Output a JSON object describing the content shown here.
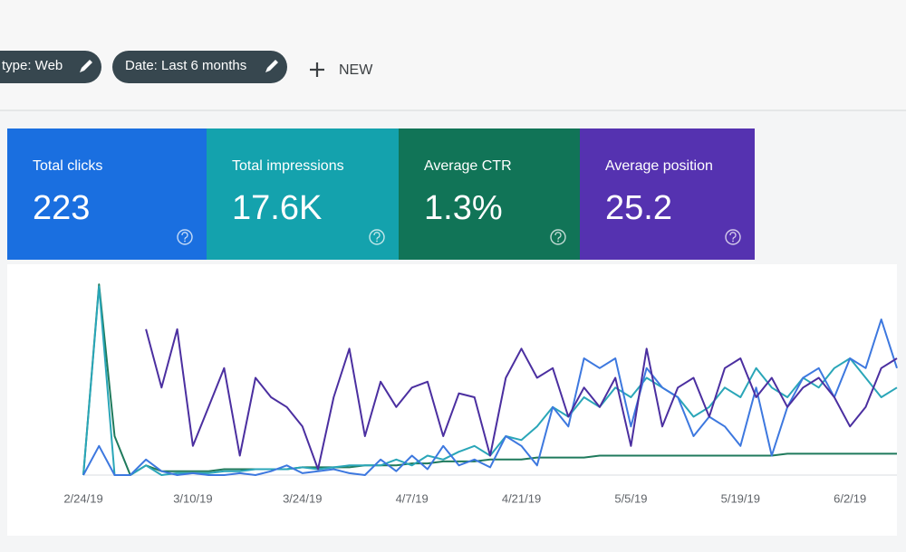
{
  "filters": [
    {
      "label": "type: Web"
    },
    {
      "label": "Date: Last 6 months"
    }
  ],
  "new_button": "NEW",
  "cards": [
    {
      "label": "Total clicks",
      "value": "223",
      "color": "#1a6fe0"
    },
    {
      "label": "Total impressions",
      "value": "17.6K",
      "color": "#14a2ad"
    },
    {
      "label": "Average CTR",
      "value": "1.3%",
      "color": "#117457"
    },
    {
      "label": "Average position",
      "value": "25.2",
      "color": "#5532b0"
    }
  ],
  "chart_data": {
    "type": "line",
    "xlim": [
      0,
      52
    ],
    "ylim": [
      0,
      100
    ],
    "xticks": [
      {
        "value": 0,
        "label": "2/24/19"
      },
      {
        "value": 7,
        "label": "3/10/19"
      },
      {
        "value": 14,
        "label": "3/24/19"
      },
      {
        "value": 21,
        "label": "4/7/19"
      },
      {
        "value": 28,
        "label": "4/21/19"
      },
      {
        "value": 35,
        "label": "5/5/19"
      },
      {
        "value": 42,
        "label": "5/19/19"
      },
      {
        "value": 49,
        "label": "6/2/19"
      }
    ],
    "series": [
      {
        "color": "#1f7a5c",
        "values": [
          0,
          98,
          20,
          0,
          5,
          2,
          2,
          2,
          2,
          3,
          3,
          3,
          3,
          3,
          4,
          4,
          4,
          4,
          5,
          5,
          5,
          6,
          6,
          7,
          7,
          7,
          8,
          8,
          8,
          9,
          9,
          9,
          9,
          10,
          10,
          10,
          10,
          10,
          10,
          10,
          10,
          10,
          10,
          10,
          10,
          11,
          11,
          11,
          11,
          11,
          11,
          11,
          11
        ]
      },
      {
        "color": "#2aa6b8",
        "values": [
          0,
          97,
          0,
          0,
          5,
          0,
          1,
          1,
          1,
          2,
          2,
          3,
          3,
          3,
          4,
          3,
          4,
          5,
          5,
          5,
          8,
          5,
          10,
          8,
          12,
          15,
          10,
          20,
          18,
          25,
          35,
          30,
          40,
          35,
          45,
          40,
          50,
          45,
          40,
          30,
          35,
          45,
          40,
          55,
          45,
          40,
          50,
          45,
          55,
          60,
          50,
          40,
          45
        ]
      },
      {
        "color": "#3d78df",
        "values": [
          0,
          15,
          0,
          0,
          8,
          2,
          0,
          1,
          0,
          0,
          1,
          0,
          2,
          5,
          1,
          2,
          3,
          1,
          0,
          8,
          2,
          10,
          3,
          15,
          5,
          8,
          4,
          20,
          15,
          5,
          35,
          25,
          60,
          55,
          60,
          25,
          55,
          45,
          40,
          20,
          30,
          25,
          15,
          45,
          10,
          35,
          50,
          55,
          40,
          60,
          55,
          80,
          55
        ]
      },
      {
        "color": "#4b2fa0",
        "values": [
          null,
          null,
          null,
          null,
          75,
          45,
          75,
          15,
          35,
          55,
          10,
          50,
          40,
          35,
          25,
          3,
          40,
          65,
          20,
          48,
          35,
          45,
          48,
          20,
          42,
          40,
          10,
          50,
          65,
          50,
          55,
          30,
          45,
          35,
          50,
          15,
          65,
          25,
          45,
          50,
          30,
          55,
          60,
          40,
          50,
          35,
          45,
          50,
          40,
          25,
          35,
          55,
          60
        ]
      }
    ]
  }
}
